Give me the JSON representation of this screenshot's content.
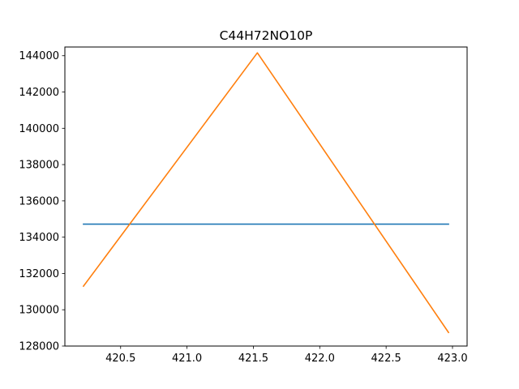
{
  "chart_data": {
    "type": "line",
    "title": "C44H72NO10P",
    "xlabel": "",
    "ylabel": "",
    "xlim": [
      420.08,
      423.11
    ],
    "ylim": [
      128000,
      144480
    ],
    "xticks": [
      420.5,
      421.0,
      421.5,
      422.0,
      422.5,
      423.0
    ],
    "xtick_labels": [
      "420.5",
      "421.0",
      "421.5",
      "422.0",
      "422.5",
      "423.0"
    ],
    "yticks": [
      128000,
      130000,
      132000,
      134000,
      136000,
      138000,
      140000,
      142000,
      144000
    ],
    "ytick_labels": [
      "128000",
      "130000",
      "132000",
      "134000",
      "136000",
      "138000",
      "140000",
      "142000",
      "144000"
    ],
    "grid": false,
    "legend": "none",
    "series": [
      {
        "color": "#1f77b4",
        "x": [
          420.22,
          422.97
        ],
        "y": [
          134720,
          134720
        ]
      },
      {
        "color": "#ff7f0e",
        "x": [
          420.22,
          421.53,
          422.97
        ],
        "y": [
          131300,
          144160,
          128750
        ]
      }
    ]
  }
}
